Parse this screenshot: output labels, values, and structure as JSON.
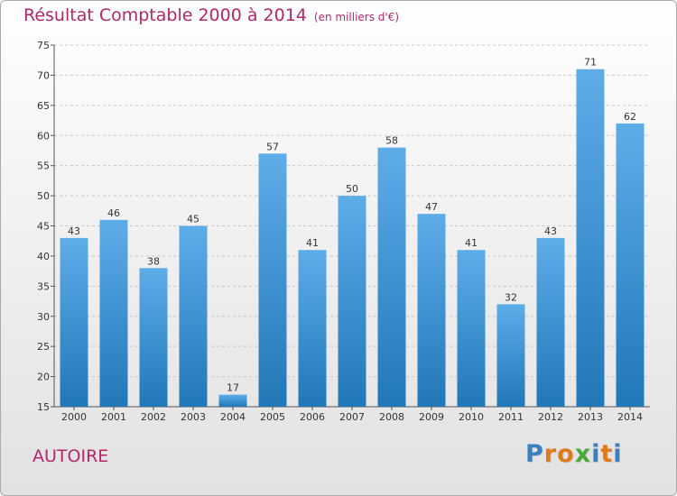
{
  "header": {
    "title": "Résultat Comptable 2000 à 2014",
    "unit": "(en milliers d'€)"
  },
  "footer": {
    "town": "AUTOIRE",
    "logo": [
      "P",
      "r",
      "o",
      "x",
      "i",
      "t",
      "i"
    ]
  },
  "colors": {
    "title": "#b5256b",
    "bar_top": "#5dade8",
    "bar_bottom": "#2277b8",
    "logo": [
      "#3a7fc1",
      "#e07b1c",
      "#e07b1c",
      "#4aa93b",
      "#3a7fc1",
      "#e07b1c",
      "#3a7fc1"
    ]
  },
  "chart_data": {
    "type": "bar",
    "title": "Résultat Comptable 2000 à 2014",
    "subtitle": "(en milliers d'€)",
    "categories": [
      "2000",
      "2001",
      "2002",
      "2003",
      "2004",
      "2005",
      "2006",
      "2007",
      "2008",
      "2009",
      "2010",
      "2011",
      "2012",
      "2013",
      "2014"
    ],
    "values": [
      43,
      46,
      38,
      45,
      17,
      57,
      41,
      50,
      58,
      47,
      41,
      32,
      43,
      71,
      62
    ],
    "ylim": [
      15,
      75
    ],
    "yticks": [
      15,
      20,
      25,
      30,
      35,
      40,
      45,
      50,
      55,
      60,
      65,
      70,
      75
    ],
    "grid": "horizontal dashed",
    "data_labels": true
  }
}
